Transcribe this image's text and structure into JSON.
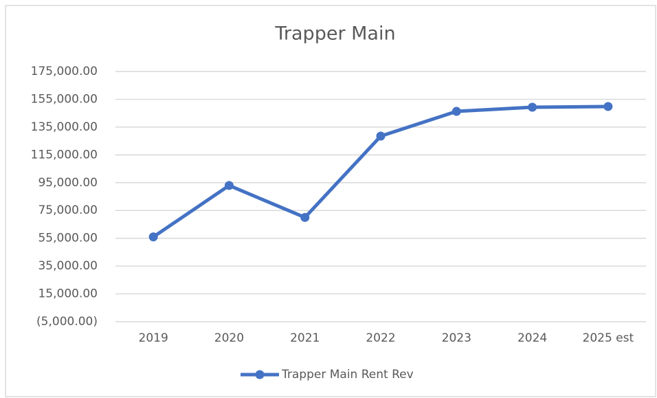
{
  "chart_data": {
    "type": "line",
    "title": "Trapper Main",
    "categories": [
      "2019",
      "2020",
      "2021",
      "2022",
      "2023",
      "2024",
      "2025 est"
    ],
    "series": [
      {
        "name": "Trapper Main Rent Rev",
        "color": "#4472c4",
        "values": [
          56000,
          93000,
          70000,
          128500,
          146300,
          149300,
          149800
        ]
      }
    ],
    "ylim": [
      -5000,
      175000
    ],
    "yticks": [
      {
        "value": -5000,
        "label": "(5,000.00)"
      },
      {
        "value": 15000,
        "label": "15,000.00"
      },
      {
        "value": 35000,
        "label": "35,000.00"
      },
      {
        "value": 55000,
        "label": "55,000.00"
      },
      {
        "value": 75000,
        "label": "75,000.00"
      },
      {
        "value": 95000,
        "label": "95,000.00"
      },
      {
        "value": 115000,
        "label": "115,000.00"
      },
      {
        "value": 135000,
        "label": "135,000.00"
      },
      {
        "value": 155000,
        "label": "155,000.00"
      },
      {
        "value": 175000,
        "label": "175,000.00"
      }
    ],
    "grid": true,
    "legend": "bottom"
  }
}
